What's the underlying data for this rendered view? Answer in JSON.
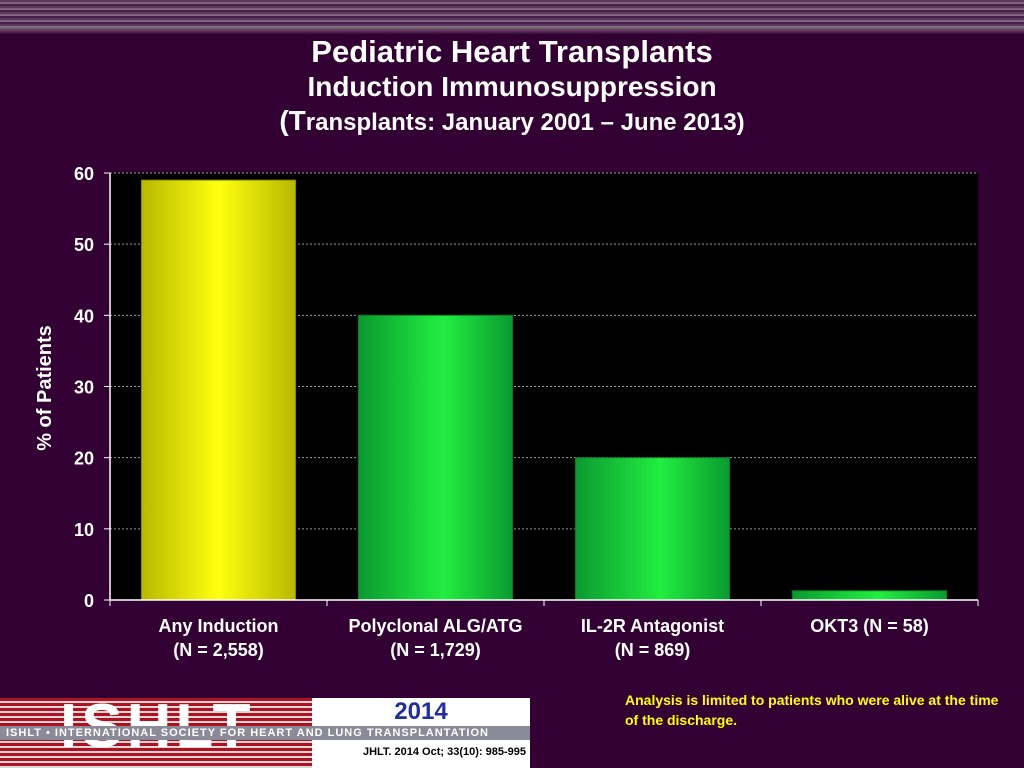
{
  "title": {
    "line1": "Pediatric Heart Transplants",
    "line2": "Induction Immunosuppression",
    "line3_open": "(T",
    "line3_rest": "ransplants: January 2001 – June 2013)"
  },
  "chart_data": {
    "type": "bar",
    "categories": [
      [
        "Any Induction",
        "(N = 2,558)"
      ],
      [
        "Polyclonal ALG/ATG",
        "(N = 1,729)"
      ],
      [
        "IL-2R Antagonist",
        "(N = 869)"
      ],
      [
        "OKT3 (N = 58)",
        ""
      ]
    ],
    "values": [
      59,
      40,
      20,
      1.3
    ],
    "bar_colors": [
      "#e6e600",
      "#18c840",
      "#18d830",
      "#14b838"
    ],
    "ylabel": "% of Patients",
    "ylim": [
      0,
      60
    ],
    "yticks": [
      0,
      10,
      20,
      30,
      40,
      50,
      60
    ],
    "grid": "dotted horizontal",
    "plot_background": "#000000"
  },
  "note": "Analysis is limited to patients who were alive at the time of the discharge.",
  "logo": {
    "wordmark": "ISHLT",
    "year": "2014",
    "band": "ISHLT • INTERNATIONAL SOCIETY FOR HEART AND LUNG TRANSPLANTATION",
    "citation": "JHLT. 2014 Oct; 33(10): 985-995"
  },
  "colors": {
    "background": "#330033",
    "note_text": "#ffff00",
    "year_text": "#1f2f9f"
  }
}
